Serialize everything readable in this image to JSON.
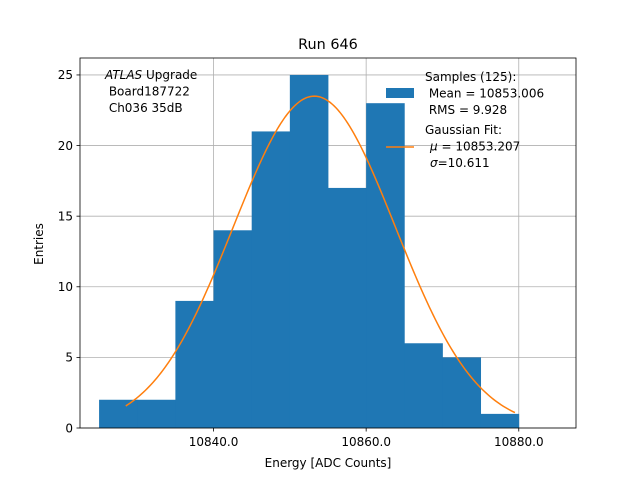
{
  "chart_data": {
    "type": "bar",
    "title": "Run 646",
    "xlabel": "Energy [ADC Counts]",
    "ylabel": "Entries",
    "xlim": [
      10822.5,
      10887.5
    ],
    "ylim": [
      0,
      26.2
    ],
    "x_ticks": [
      10840,
      10860,
      10880
    ],
    "x_tick_labels": [
      "10840.0",
      "10860.0",
      "10880.0"
    ],
    "y_ticks": [
      0,
      5,
      10,
      15,
      20,
      25
    ],
    "y_tick_labels": [
      "0",
      "5",
      "10",
      "15",
      "20",
      "25"
    ],
    "grid": true,
    "bin_edges": [
      10825,
      10830,
      10835,
      10840,
      10845,
      10850,
      10855,
      10860,
      10865,
      10870,
      10875,
      10880
    ],
    "counts": [
      2,
      2,
      9,
      14,
      21,
      25,
      17,
      23,
      6,
      5,
      1
    ],
    "fit": {
      "mu": 10853.207,
      "sigma": 10.611,
      "x_range": [
        10828.5,
        10879.5
      ]
    },
    "annotation_lines": [
      {
        "italic": "ATLAS",
        "rest": " Upgrade"
      },
      {
        "italic": "",
        "rest": " Board187722"
      },
      {
        "italic": "",
        "rest": " Ch036 35dB"
      }
    ],
    "legend": {
      "position": "upper right",
      "hist_lines": [
        "Samples (125):",
        " Mean = 10853.006",
        " RMS = 9.928"
      ],
      "fit_lines": [
        "Gaussian Fit:",
        "μ = 10853.207",
        "σ=10.611"
      ]
    },
    "colors": {
      "hist": "#1f77b4",
      "fit": "#ff7f0e",
      "grid": "#b0b0b0"
    }
  }
}
